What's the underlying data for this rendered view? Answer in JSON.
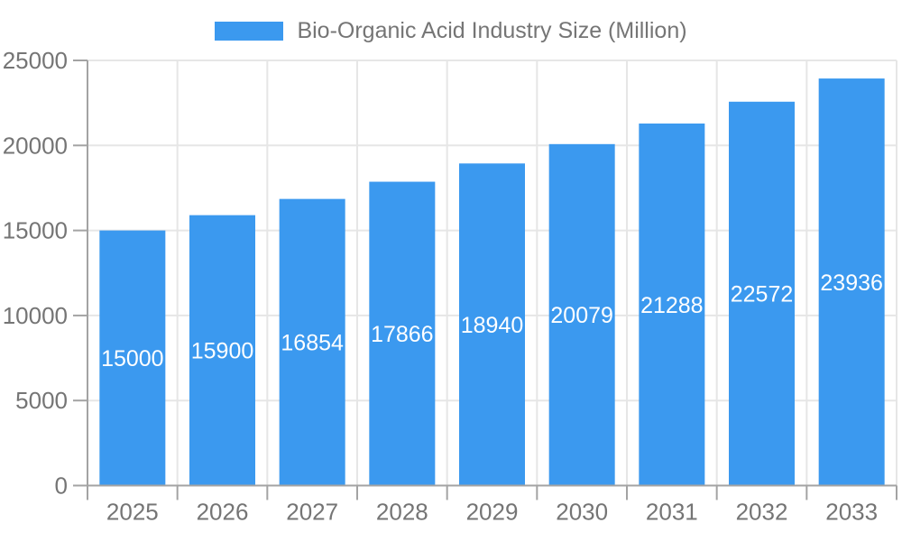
{
  "legend": {
    "items": [
      {
        "label": "Bio-Organic Acid Industry Size (Million)",
        "color": "#3B99EF"
      }
    ]
  },
  "colors": {
    "bar": "#3B99EF",
    "bar_label_text": "#FFFFFF",
    "axis_line": "#A3A3A3",
    "tick_mark": "#A3A3A3",
    "grid_line": "#E6E6E6",
    "tick_text": "#757575",
    "background": "#FFFFFF"
  },
  "chart_data": {
    "type": "bar",
    "title": "Bio-Organic Acid Industry Size (Million)",
    "series_name": "Bio-Organic Acid Industry Size (Million)",
    "categories": [
      "2025",
      "2026",
      "2027",
      "2028",
      "2029",
      "2030",
      "2031",
      "2032",
      "2033"
    ],
    "values": [
      15000,
      15900,
      16854,
      17866,
      18940,
      20079,
      21288,
      22572,
      23936
    ],
    "xlabel": "",
    "ylabel": "",
    "ylim": [
      0,
      25000
    ],
    "y_ticks": [
      0,
      5000,
      10000,
      15000,
      20000,
      25000
    ],
    "grid": true,
    "grid_vertical": true,
    "legend_position": "top-center",
    "value_labels": "inside-center-white"
  }
}
